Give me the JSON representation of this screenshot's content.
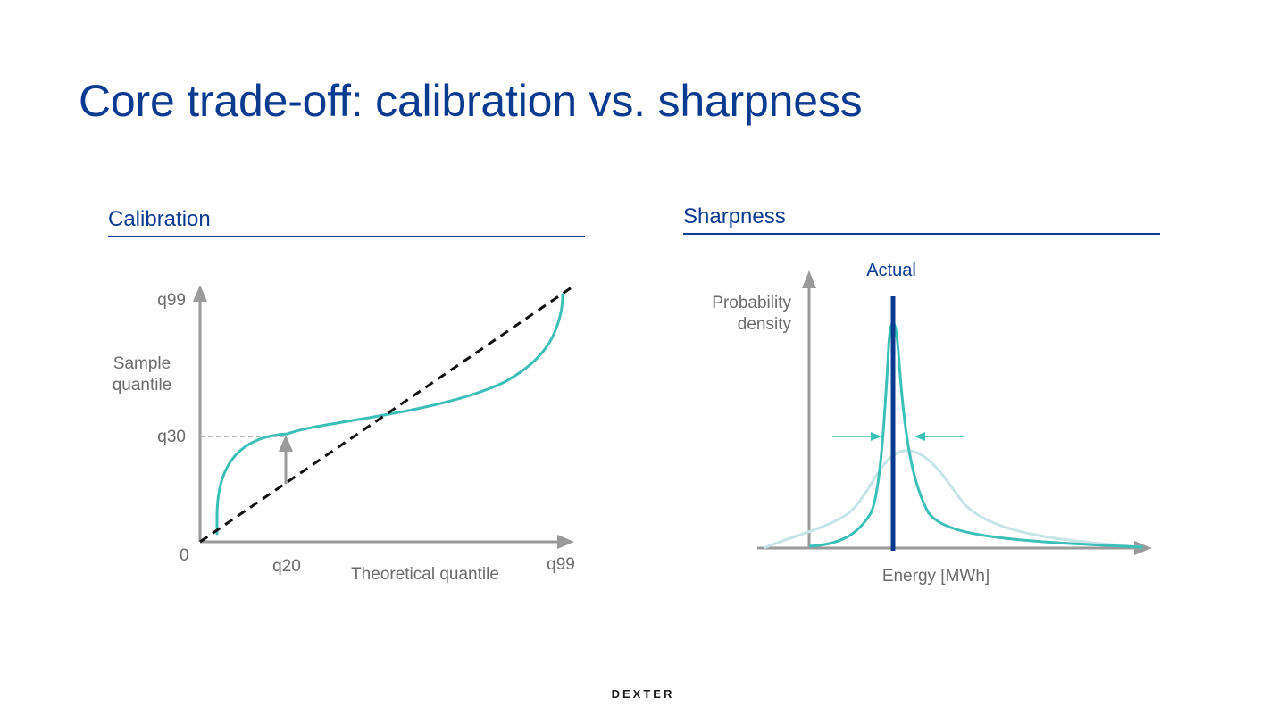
{
  "slide": {
    "title": "Core trade-off: calibration vs. sharpness",
    "logo": "DEXTER",
    "colors": {
      "brand": "#0b3b8f",
      "teal": "#3bbfb7",
      "light_teal": "#c6e3e6",
      "axis": "#9a9a9a",
      "text": "#6b6b6b"
    }
  },
  "calibration": {
    "title": "Calibration",
    "y_axis_label_line1": "Sample",
    "y_axis_label_line2": "quantile",
    "x_axis_label": "Theoretical quantile",
    "origin_label": "0",
    "y_ticks": {
      "q99": "q99",
      "q30": "q30"
    },
    "x_ticks": {
      "q20": "q20",
      "q99": "q99"
    },
    "curves": [
      "sample-quantile-curve",
      "ideal-diagonal"
    ]
  },
  "sharpness": {
    "title": "Sharpness",
    "actual_label": "Actual",
    "y_axis_label_line1": "Probability",
    "y_axis_label_line2": "density",
    "x_axis_label": "Energy [MWh]",
    "curves": [
      "sharp-distribution",
      "wide-distribution"
    ]
  }
}
